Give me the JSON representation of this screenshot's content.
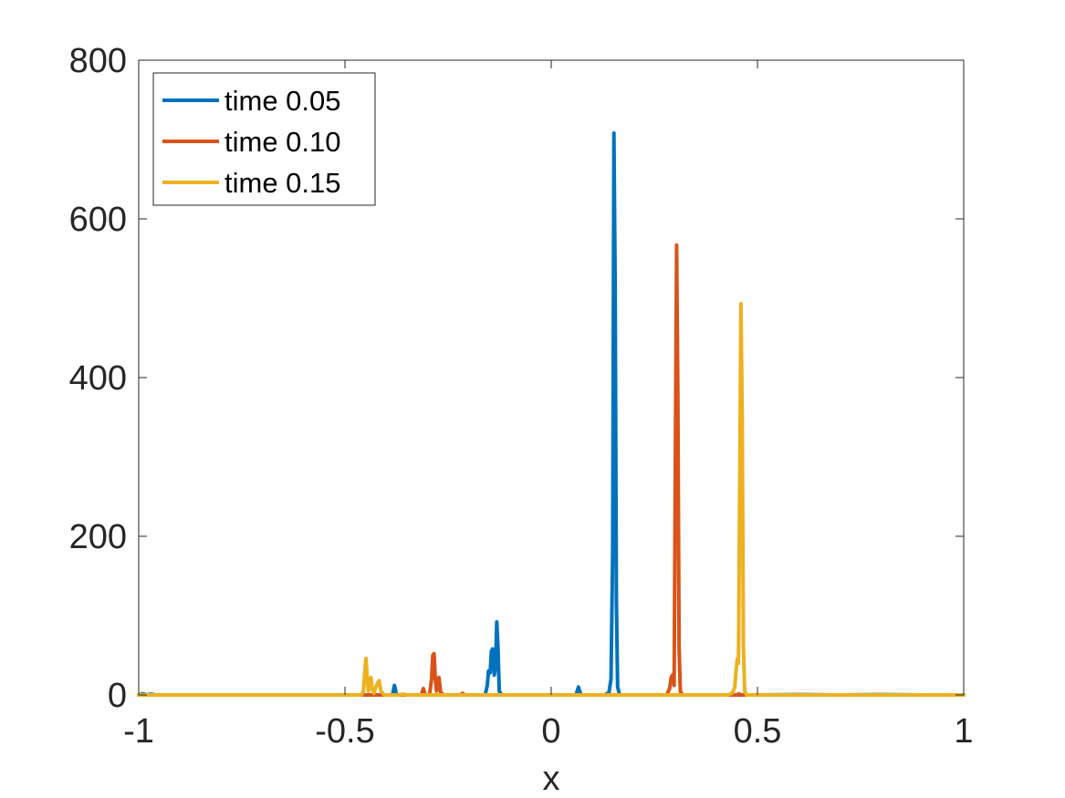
{
  "chart_data": {
    "type": "line",
    "title": "",
    "xlabel": "x",
    "ylabel": "",
    "xlim": [
      -1,
      1
    ],
    "ylim": [
      0,
      800
    ],
    "xticks": [
      -1,
      -0.5,
      0,
      0.5,
      1
    ],
    "xtick_labels": [
      "-1",
      "-0.5",
      "0",
      "0.5",
      "1"
    ],
    "yticks": [
      0,
      200,
      400,
      600,
      800
    ],
    "ytick_labels": [
      "0",
      "200",
      "400",
      "600",
      "800"
    ],
    "grid": false,
    "legend_position": "top-left",
    "series": [
      {
        "name": "time 0.05",
        "color": "#0072BD",
        "points": [
          [
            -1.0,
            0
          ],
          [
            -0.99,
            1.5
          ],
          [
            -0.98,
            0
          ],
          [
            -0.97,
            1
          ],
          [
            -0.96,
            0
          ],
          [
            -0.385,
            0
          ],
          [
            -0.38,
            12
          ],
          [
            -0.375,
            0
          ],
          [
            -0.16,
            0
          ],
          [
            -0.155,
            12
          ],
          [
            -0.152,
            30
          ],
          [
            -0.148,
            28
          ],
          [
            -0.145,
            55
          ],
          [
            -0.142,
            58
          ],
          [
            -0.138,
            25
          ],
          [
            -0.135,
            35
          ],
          [
            -0.132,
            92
          ],
          [
            -0.129,
            60
          ],
          [
            -0.126,
            5
          ],
          [
            -0.12,
            0
          ],
          [
            0.06,
            0
          ],
          [
            0.066,
            10
          ],
          [
            0.072,
            0
          ],
          [
            0.13,
            0
          ],
          [
            0.14,
            3
          ],
          [
            0.145,
            20
          ],
          [
            0.149,
            180
          ],
          [
            0.152,
            708
          ],
          [
            0.155,
            520
          ],
          [
            0.158,
            120
          ],
          [
            0.161,
            10
          ],
          [
            0.166,
            0
          ],
          [
            0.5,
            0
          ],
          [
            0.6,
            0.5
          ],
          [
            0.7,
            0
          ],
          [
            0.8,
            0.5
          ],
          [
            0.9,
            0
          ],
          [
            1.0,
            0
          ]
        ]
      },
      {
        "name": "time 0.10",
        "color": "#D95319",
        "points": [
          [
            -1.0,
            0
          ],
          [
            -0.315,
            0
          ],
          [
            -0.31,
            8
          ],
          [
            -0.305,
            0
          ],
          [
            -0.295,
            0
          ],
          [
            -0.29,
            20
          ],
          [
            -0.287,
            50
          ],
          [
            -0.284,
            52
          ],
          [
            -0.281,
            20
          ],
          [
            -0.278,
            5
          ],
          [
            -0.275,
            15
          ],
          [
            -0.272,
            22
          ],
          [
            -0.268,
            3
          ],
          [
            -0.26,
            0
          ],
          [
            -0.22,
            0
          ],
          [
            -0.215,
            2
          ],
          [
            -0.21,
            0
          ],
          [
            0.28,
            0
          ],
          [
            0.287,
            8
          ],
          [
            0.291,
            22
          ],
          [
            0.294,
            25
          ],
          [
            0.298,
            12
          ],
          [
            0.301,
            300
          ],
          [
            0.304,
            567
          ],
          [
            0.307,
            380
          ],
          [
            0.31,
            60
          ],
          [
            0.313,
            5
          ],
          [
            0.318,
            0
          ],
          [
            0.45,
            0
          ],
          [
            0.455,
            1.5
          ],
          [
            0.46,
            0
          ],
          [
            1.0,
            0
          ]
        ]
      },
      {
        "name": "time 0.15",
        "color": "#EDB120",
        "points": [
          [
            -1.0,
            0
          ],
          [
            -0.46,
            0
          ],
          [
            -0.455,
            5
          ],
          [
            -0.452,
            30
          ],
          [
            -0.449,
            46
          ],
          [
            -0.446,
            20
          ],
          [
            -0.443,
            5
          ],
          [
            -0.44,
            18
          ],
          [
            -0.437,
            22
          ],
          [
            -0.434,
            8
          ],
          [
            -0.43,
            2
          ],
          [
            -0.425,
            10
          ],
          [
            -0.42,
            16
          ],
          [
            -0.417,
            18
          ],
          [
            -0.413,
            5
          ],
          [
            -0.405,
            0
          ],
          [
            -0.37,
            0
          ],
          [
            -0.36,
            1
          ],
          [
            -0.35,
            0
          ],
          [
            0.43,
            0
          ],
          [
            0.44,
            3
          ],
          [
            0.445,
            10
          ],
          [
            0.448,
            30
          ],
          [
            0.451,
            45
          ],
          [
            0.454,
            40
          ],
          [
            0.457,
            260
          ],
          [
            0.46,
            493
          ],
          [
            0.463,
            350
          ],
          [
            0.466,
            60
          ],
          [
            0.469,
            5
          ],
          [
            0.474,
            0
          ],
          [
            1.0,
            0
          ]
        ]
      }
    ]
  }
}
